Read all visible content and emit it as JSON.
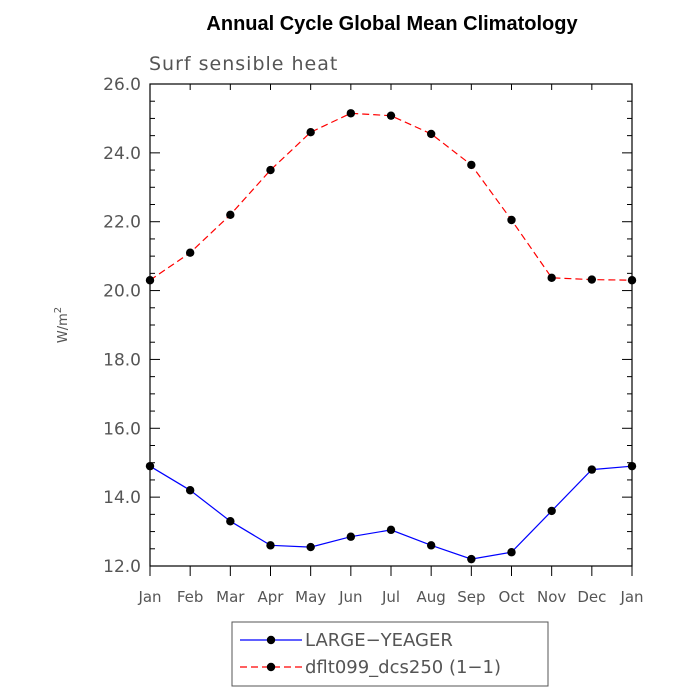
{
  "chart_data": {
    "type": "line",
    "title": "Annual Cycle Global Mean Climatology",
    "subtitle": "Surf sensible heat",
    "ylabel": "W/m",
    "ylabel_superscript": "2",
    "xlabel": "",
    "categories": [
      "Jan",
      "Feb",
      "Mar",
      "Apr",
      "May",
      "Jun",
      "Jul",
      "Aug",
      "Sep",
      "Oct",
      "Nov",
      "Dec",
      "Jan"
    ],
    "ylim": [
      12.0,
      26.0
    ],
    "yticks": [
      "12.0",
      "14.0",
      "16.0",
      "18.0",
      "20.0",
      "22.0",
      "24.0",
      "26.0"
    ],
    "grid": false,
    "legend_position": "bottom",
    "series": [
      {
        "name": "LARGE−YEAGER",
        "color": "#0000ff",
        "style": "solid",
        "values": [
          14.9,
          14.2,
          13.3,
          12.6,
          12.55,
          12.85,
          13.05,
          12.6,
          12.2,
          12.4,
          13.6,
          14.8,
          14.9
        ]
      },
      {
        "name": "dflt099_dcs250 (1−1)",
        "color": "#ff0000",
        "style": "dashed",
        "values": [
          20.3,
          21.1,
          22.2,
          23.5,
          24.6,
          25.15,
          25.08,
          24.55,
          23.65,
          22.05,
          20.37,
          20.32,
          20.3
        ]
      }
    ]
  }
}
